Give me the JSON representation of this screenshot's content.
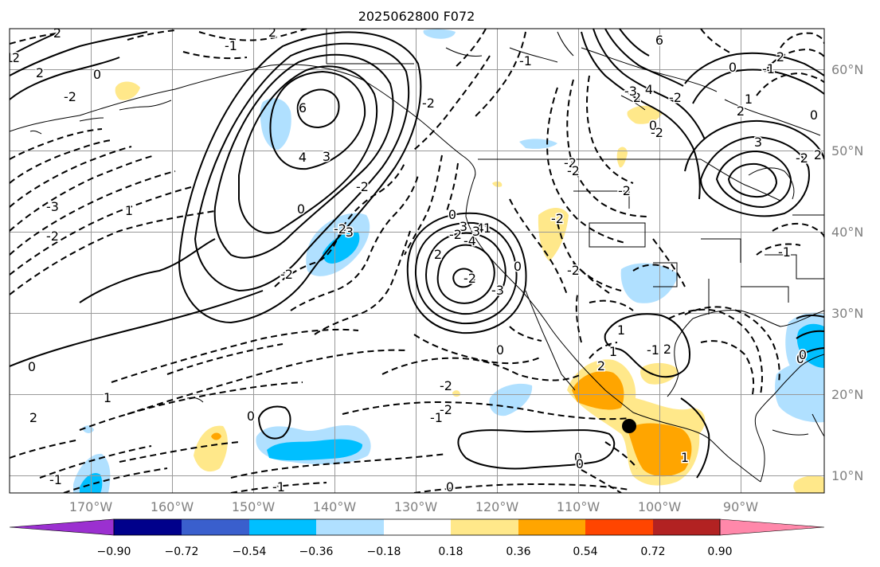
{
  "title": "2025062800 F072",
  "lat_labels": [
    "60°N",
    "50°N",
    "40°N",
    "30°N",
    "20°N",
    "10°N"
  ],
  "lon_labels": [
    "170°W",
    "160°W",
    "150°W",
    "140°W",
    "130°W",
    "120°W",
    "110°W",
    "100°W",
    "90°W"
  ],
  "colorbar": {
    "tick_labels": [
      "−0.90",
      "−0.72",
      "−0.54",
      "−0.36",
      "−0.18",
      "0.18",
      "0.36",
      "0.54",
      "0.72",
      "0.90"
    ],
    "colors": [
      "#9b30d0",
      "#00008b",
      "#3a5fcd",
      "#00bfff",
      "#b0e0ff",
      "#ffffff",
      "#ffe88a",
      "#ffa500",
      "#ff4500",
      "#b22222",
      "#ff88aa"
    ]
  },
  "contour_labels": [
    "2",
    "2",
    "-1",
    "2",
    "0",
    "-2",
    "6",
    "4",
    "3",
    "-3",
    "1",
    "-2",
    "0",
    "1",
    "2",
    "-3",
    "-2",
    "2",
    "-2",
    "0",
    "3",
    "-4",
    "-3",
    "-2",
    "0",
    "-2",
    "-2",
    "0",
    "-1",
    "1",
    "2",
    "1",
    "-2",
    "0",
    "-2",
    "6",
    "4",
    "2",
    "-1",
    "1",
    "3",
    "2",
    "-1",
    "0",
    "0",
    "-1",
    "-1",
    "0",
    "0",
    "0",
    "1",
    "-2",
    "-2",
    "-3",
    "2",
    "-1",
    "-2",
    "0",
    "2",
    "1",
    "0",
    "-1",
    "2",
    "0",
    "0",
    "-2",
    "-4",
    "3",
    "-2",
    "-2",
    "1",
    "-2",
    "-2",
    "-2",
    "2"
  ],
  "marker": "filled-circle"
}
